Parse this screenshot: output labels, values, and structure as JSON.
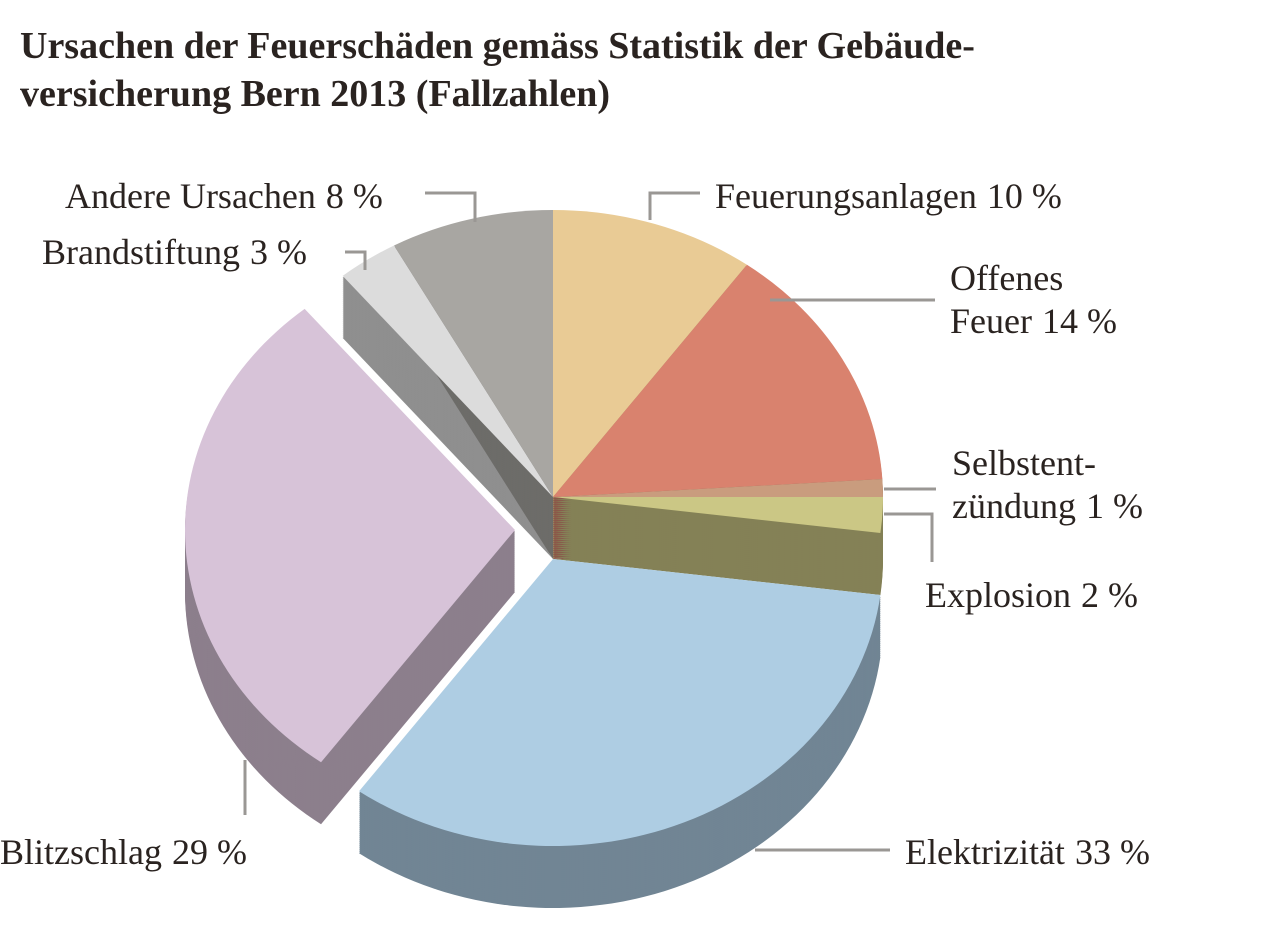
{
  "chart_data": {
    "type": "pie",
    "title": "Ursachen der Feuerschäden gemäss Statistik der Gebäude-\nversicherung Bern 2013 (Fallzahlen)",
    "categories": [
      "Feuerungsanlagen",
      "Offenes\nFeuer",
      "Selbstent-\nzündung",
      "Explosion",
      "Elektrizität",
      "Blitzschlag",
      "Brandstiftung",
      "Andere Ursachen"
    ],
    "values": [
      10,
      14,
      1,
      2,
      33,
      29,
      3,
      8
    ],
    "value_labels": [
      "10 %",
      "14 %",
      "1 %",
      "2 %",
      "33 %",
      "29 %",
      "3 %",
      "8 %"
    ],
    "colors": [
      "#e9cb95",
      "#d9826e",
      "#c99c7e",
      "#cbc785",
      "#aecde3",
      "#d7c3d8",
      "#dcdcdc",
      "#a8a6a2"
    ]
  }
}
